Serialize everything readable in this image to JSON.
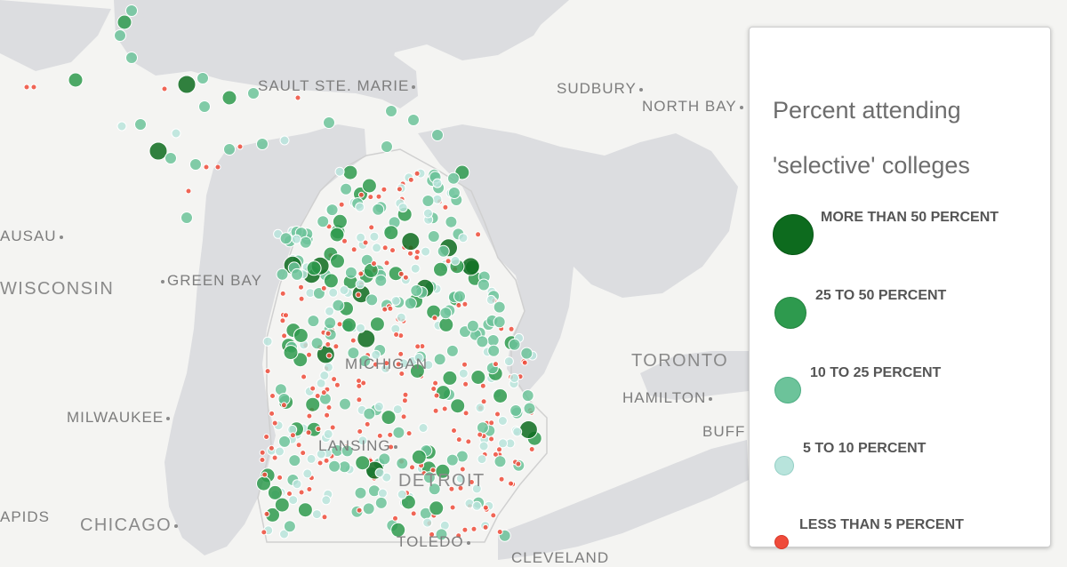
{
  "map": {
    "place_labels": [
      {
        "text": "SAULT STE. MARIE",
        "dot": "after"
      },
      {
        "text": "SUDBURY",
        "dot": "after"
      },
      {
        "text": "NORTH BAY",
        "dot": "after"
      },
      {
        "text": "AUSAU",
        "dot": "after"
      },
      {
        "text": "GREEN BAY",
        "dot": "before"
      },
      {
        "text": "WISCONSIN",
        "dot": "none"
      },
      {
        "text": "MICHIGAN",
        "dot": "none"
      },
      {
        "text": "TORONTO",
        "dot": "none"
      },
      {
        "text": "HAMILTON",
        "dot": "after"
      },
      {
        "text": "MILWAUKEE",
        "dot": "after"
      },
      {
        "text": "LANSING",
        "dot": "after"
      },
      {
        "text": "DETROIT",
        "dot": "none"
      },
      {
        "text": "BUFF",
        "dot": "none"
      },
      {
        "text": "APIDS",
        "dot": "none"
      },
      {
        "text": "CHICAGO",
        "dot": "after"
      },
      {
        "text": "TOLEDO",
        "dot": "after"
      },
      {
        "text": "CLEVELAND",
        "dot": "none"
      }
    ],
    "colors": {
      "land": "#f4f4f2",
      "water": "#dcdde0",
      "border": "#c8c8c8"
    }
  },
  "legend": {
    "title": "Percent attending 'selective' colleges",
    "items": [
      {
        "label": "MORE THAN 50 PERCENT",
        "color": "#0d6b1e",
        "border": "#0a5a18"
      },
      {
        "label": "25 TO 50 PERCENT",
        "color": "#2e9a4e",
        "border": "#24843f"
      },
      {
        "label": "10 TO 25 PERCENT",
        "color": "#6cc39a",
        "border": "#4fae84"
      },
      {
        "label": "5 TO 10 PERCENT",
        "color": "#b8e4dc",
        "border": "#94cfc5"
      },
      {
        "label": "LESS THAN 5 PERCENT",
        "color": "#ef4b3a",
        "border": "#d8382a"
      }
    ]
  }
}
